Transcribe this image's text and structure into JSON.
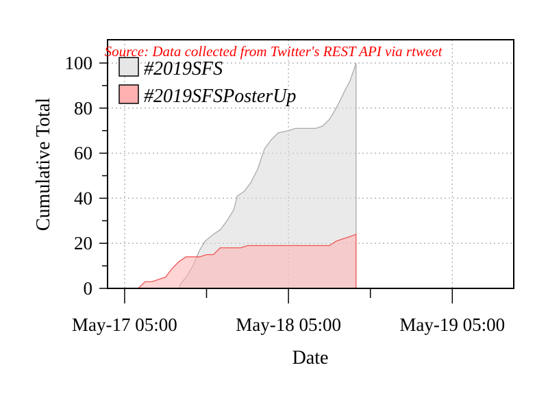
{
  "chart_data": {
    "type": "area",
    "source_note": "Source: Data collected from Twitter's REST API via rtweet",
    "xlabel": "Date",
    "ylabel": "Cumulative Total",
    "x_tick_labels": [
      "May-17 05:00",
      "May-18 05:00",
      "May-19 05:00"
    ],
    "x_tick_positions": [
      0,
      24,
      48
    ],
    "x_minor_positions": [
      12,
      36
    ],
    "xlim": [
      -2.5,
      57
    ],
    "x_unit": "hours since May-17 05:00",
    "ylim": [
      0,
      100
    ],
    "y_ticks": [
      0,
      20,
      40,
      60,
      80,
      100
    ],
    "y_minor_ticks": [
      10,
      30,
      50,
      70,
      90
    ],
    "grid": true,
    "legend_position": "top-left",
    "series": [
      {
        "name": "#2019SFS",
        "fill": "#d9d9d9",
        "stroke": "#aaaaaa",
        "points": [
          [
            8,
            0
          ],
          [
            8.2,
            2
          ],
          [
            9,
            5
          ],
          [
            10,
            10
          ],
          [
            11,
            17
          ],
          [
            11.8,
            21
          ],
          [
            13,
            24
          ],
          [
            14,
            26
          ],
          [
            15,
            30
          ],
          [
            16,
            35
          ],
          [
            16.5,
            41
          ],
          [
            17.5,
            43
          ],
          [
            18.5,
            47
          ],
          [
            19.5,
            53
          ],
          [
            20.5,
            62
          ],
          [
            21.5,
            66
          ],
          [
            22.5,
            69
          ],
          [
            24,
            70
          ],
          [
            25,
            71
          ],
          [
            26,
            71
          ],
          [
            27,
            71
          ],
          [
            28,
            71
          ],
          [
            29,
            72
          ],
          [
            30,
            75
          ],
          [
            30.8,
            79
          ],
          [
            31.5,
            83
          ],
          [
            32.3,
            88
          ],
          [
            33,
            92
          ],
          [
            33.7,
            98
          ],
          [
            33.9,
            100
          ],
          [
            33.9,
            0
          ]
        ]
      },
      {
        "name": "#2019SFSPosterUp",
        "fill": "#ffb0b0",
        "stroke": "#ee5555",
        "points": [
          [
            2,
            0
          ],
          [
            3,
            3
          ],
          [
            4,
            3
          ],
          [
            5,
            4
          ],
          [
            6,
            5
          ],
          [
            7,
            9
          ],
          [
            8,
            12
          ],
          [
            9,
            14
          ],
          [
            10,
            14
          ],
          [
            11,
            14
          ],
          [
            12,
            15
          ],
          [
            13,
            15
          ],
          [
            14,
            18
          ],
          [
            15,
            18
          ],
          [
            16,
            18
          ],
          [
            17,
            18
          ],
          [
            18,
            19
          ],
          [
            19,
            19
          ],
          [
            20,
            19
          ],
          [
            21,
            19
          ],
          [
            22,
            19
          ],
          [
            23,
            19
          ],
          [
            24,
            19
          ],
          [
            25,
            19
          ],
          [
            26,
            19
          ],
          [
            27,
            19
          ],
          [
            28,
            19
          ],
          [
            29,
            19
          ],
          [
            30,
            19
          ],
          [
            31,
            21
          ],
          [
            32,
            22
          ],
          [
            33,
            23
          ],
          [
            33.9,
            24
          ],
          [
            33.9,
            0
          ]
        ]
      }
    ]
  },
  "colors": {
    "source_text": "#ff0000",
    "grid": "#b3b3b3"
  }
}
